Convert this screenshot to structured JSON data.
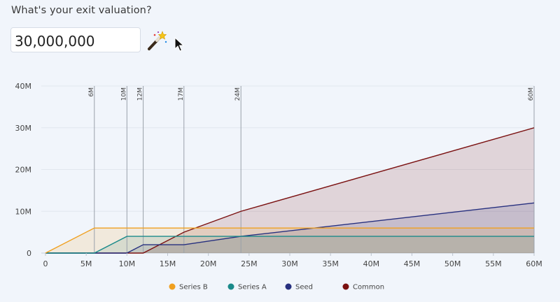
{
  "prompt": {
    "question": "What's your exit valuation?",
    "valuation_value": "30,000,000"
  },
  "tools": {
    "wand_icon": "magic-wand-icon",
    "cursor_icon": "mouse-pointer-icon"
  },
  "chart_data": {
    "type": "area",
    "xlim": [
      0,
      60
    ],
    "ylim": [
      0,
      40
    ],
    "x_ticks": [
      0,
      5,
      10,
      15,
      20,
      25,
      30,
      35,
      40,
      45,
      50,
      55,
      60
    ],
    "x_tick_labels": [
      "0",
      "5M",
      "10M",
      "15M",
      "20M",
      "25M",
      "30M",
      "35M",
      "40M",
      "45M",
      "50M",
      "55M",
      "60M"
    ],
    "y_ticks": [
      0,
      10,
      20,
      30,
      40
    ],
    "y_tick_labels": [
      "0",
      "10M",
      "20M",
      "30M",
      "40M"
    ],
    "markers": [
      {
        "x": 6,
        "label": "6M"
      },
      {
        "x": 10,
        "label": "10M"
      },
      {
        "x": 12,
        "label": "12M"
      },
      {
        "x": 17,
        "label": "17M"
      },
      {
        "x": 24,
        "label": "24M"
      },
      {
        "x": 60,
        "label": "60M"
      }
    ],
    "legend_position": "bottom",
    "series": [
      {
        "name": "Series B",
        "color": "#f0a020",
        "fill": "#f0a020",
        "points": [
          [
            0,
            0
          ],
          [
            6,
            6
          ],
          [
            60,
            6
          ]
        ]
      },
      {
        "name": "Series A",
        "color": "#1a8a8a",
        "fill": "#1a8a8a",
        "points": [
          [
            0,
            0
          ],
          [
            6,
            0
          ],
          [
            10,
            4
          ],
          [
            60,
            4
          ]
        ]
      },
      {
        "name": "Seed",
        "color": "#27307f",
        "fill": "#27307f",
        "points": [
          [
            0,
            0
          ],
          [
            10,
            0
          ],
          [
            12,
            2
          ],
          [
            17,
            2
          ],
          [
            24,
            4
          ],
          [
            60,
            12
          ]
        ]
      },
      {
        "name": "Common",
        "color": "#7a1010",
        "fill": "#7a1010",
        "points": [
          [
            0,
            0
          ],
          [
            12,
            0
          ],
          [
            17,
            5
          ],
          [
            24,
            10
          ],
          [
            60,
            30
          ]
        ]
      }
    ]
  }
}
